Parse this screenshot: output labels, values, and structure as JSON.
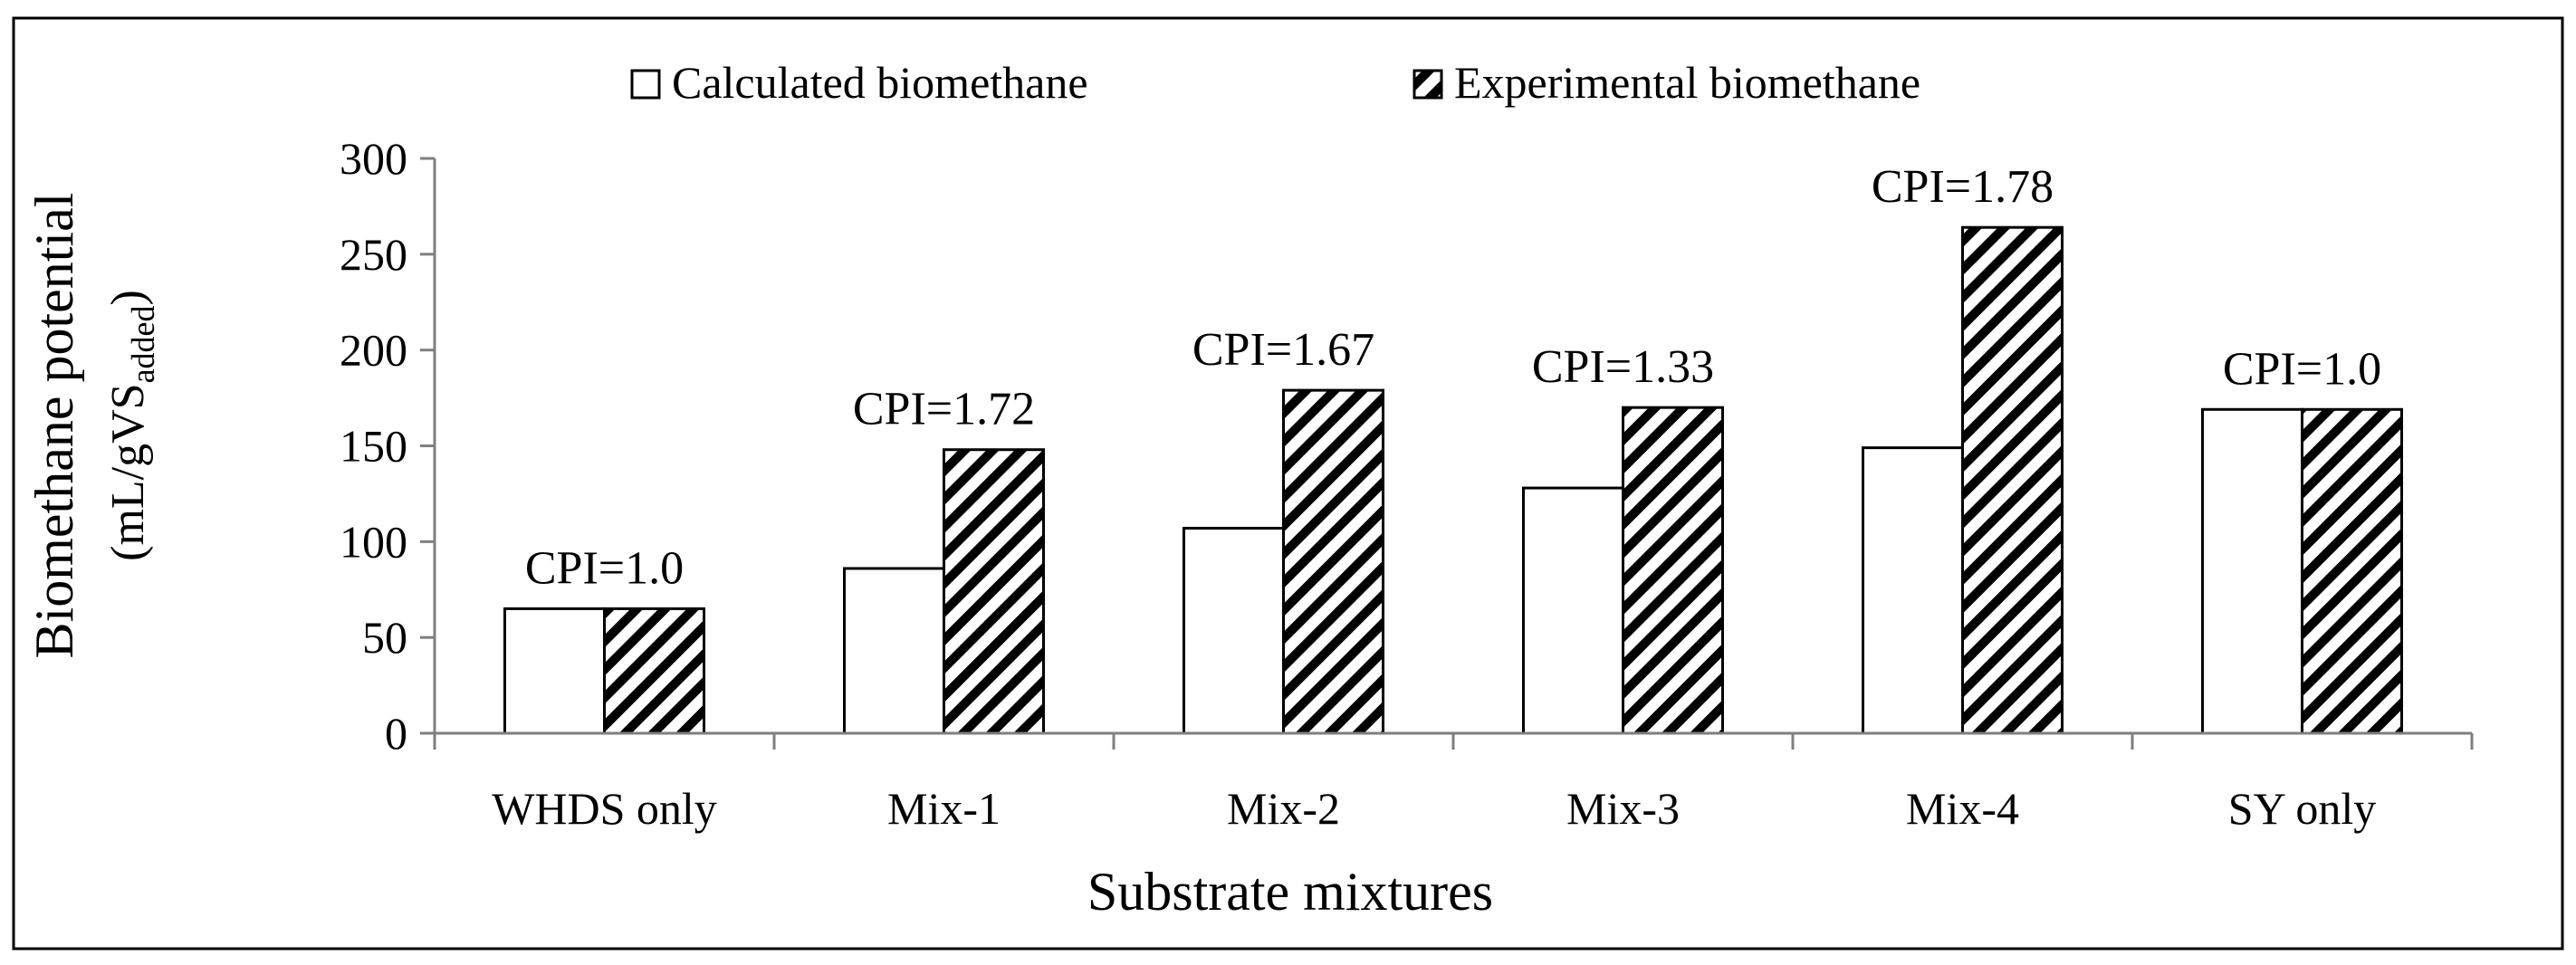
{
  "chart_data": {
    "type": "bar",
    "title": "",
    "xlabel": "Substrate mixtures",
    "ylabel": {
      "line1": "Biomethane potential",
      "line2_main": "(mL/gVS",
      "line2_sub": "added",
      "line2_end": ")"
    },
    "ylim": [
      0,
      300
    ],
    "yticks": [
      0,
      50,
      100,
      150,
      200,
      250,
      300
    ],
    "grid": false,
    "legend_position": "top-center",
    "categories": [
      "WHDS only",
      "Mix-1",
      "Mix-2",
      "Mix-3",
      "Mix-4",
      "SY only"
    ],
    "series": [
      {
        "name": "Calculated biomethane",
        "pattern": "none",
        "values": [
          65,
          86,
          107,
          128,
          149,
          169
        ]
      },
      {
        "name": "Experimental biomethane",
        "pattern": "hatch",
        "values": [
          65,
          148,
          179,
          170,
          264,
          169
        ]
      }
    ],
    "annotations": [
      "CPI=1.0",
      "CPI=1.72",
      "CPI=1.67",
      "CPI=1.33",
      "CPI=1.78",
      "CPI=1.0"
    ],
    "colors": {
      "axis": "#7f7f7f",
      "bar_stroke": "#000000",
      "bar_fill": "#ffffff",
      "hatch": "#000000"
    }
  }
}
